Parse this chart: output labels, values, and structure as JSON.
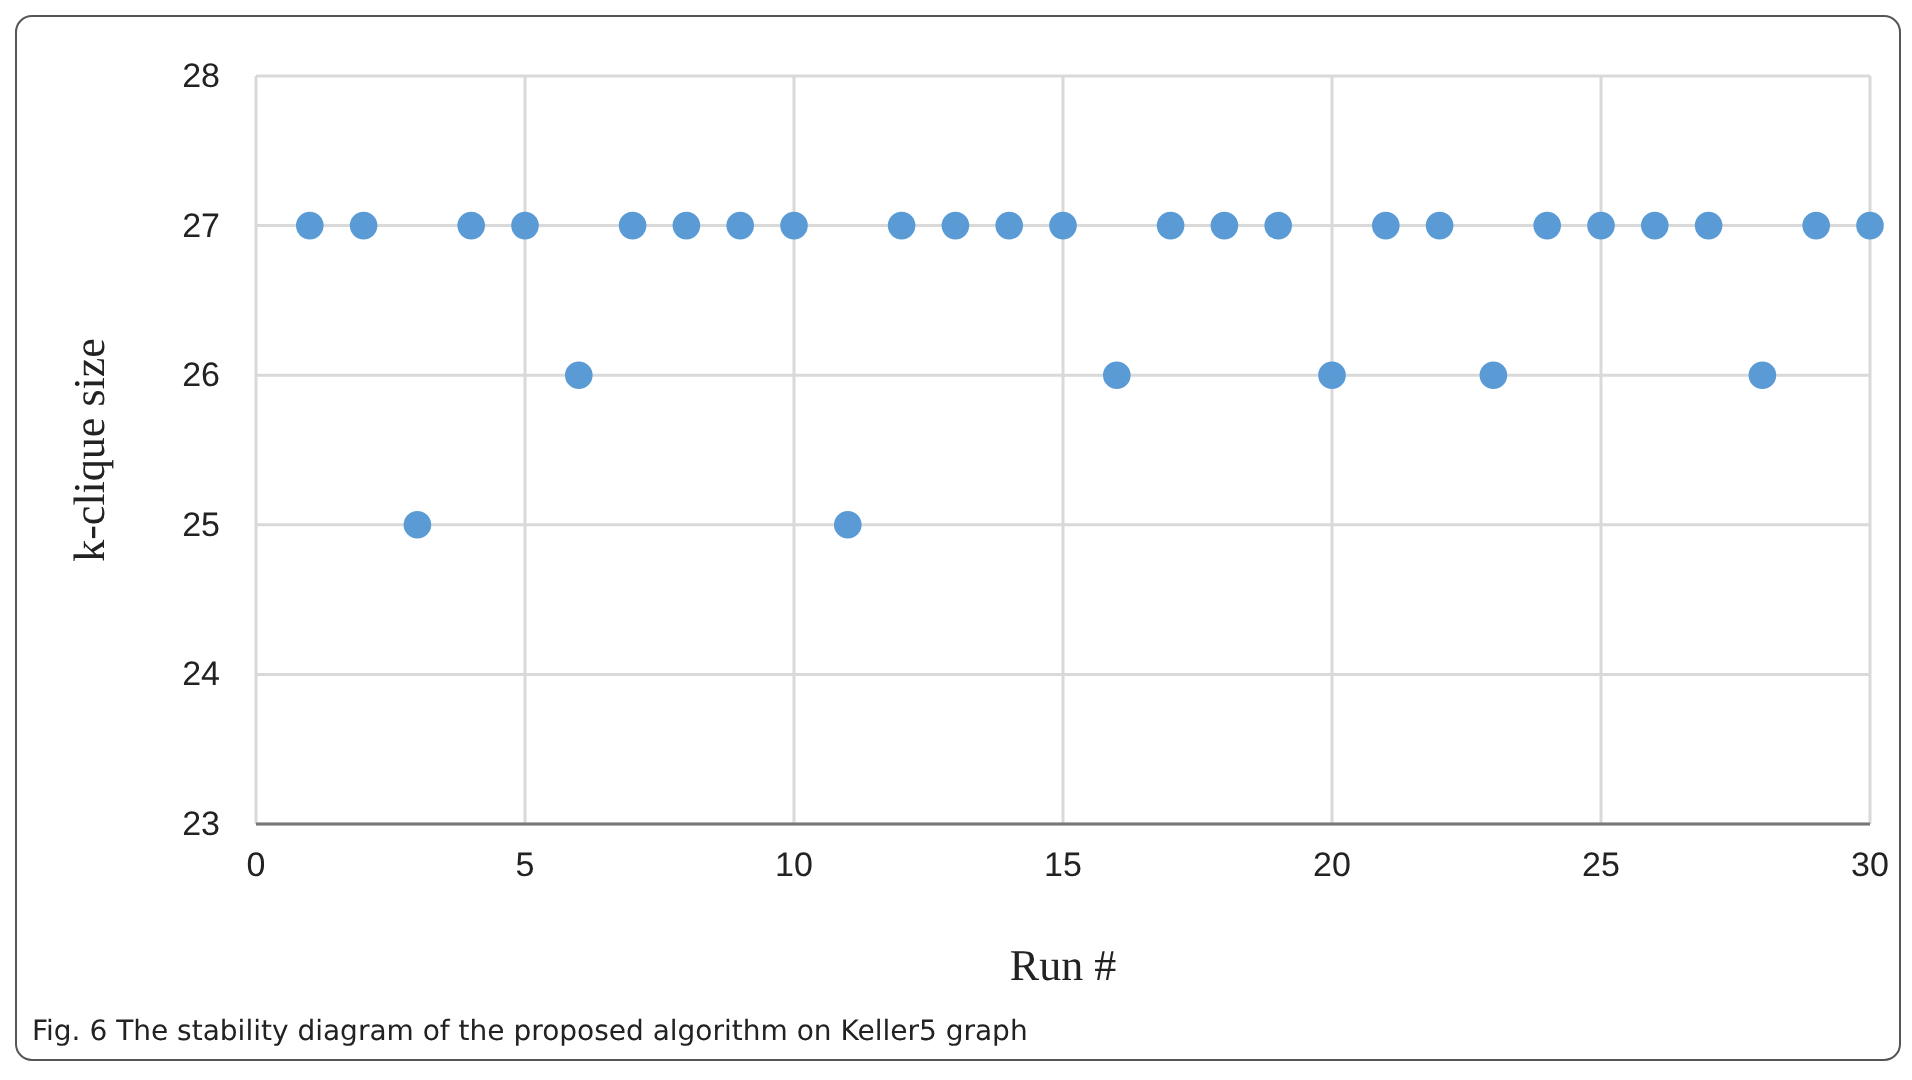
{
  "chart_data": {
    "type": "scatter",
    "xlabel": "Run #",
    "ylabel": "k-clique size",
    "x": [
      1,
      2,
      3,
      4,
      5,
      6,
      7,
      8,
      9,
      10,
      11,
      12,
      13,
      14,
      15,
      16,
      17,
      18,
      19,
      20,
      21,
      22,
      23,
      24,
      25,
      26,
      27,
      28,
      29,
      30
    ],
    "series": [
      {
        "color": "#5b9bd5",
        "values": [
          27,
          27,
          25,
          27,
          27,
          26,
          27,
          27,
          27,
          27,
          25,
          27,
          27,
          27,
          27,
          26,
          27,
          27,
          27,
          26,
          27,
          27,
          26,
          27,
          27,
          27,
          27,
          26,
          27,
          27
        ]
      }
    ],
    "xlim": [
      0,
      30
    ],
    "xticks": [
      0,
      5,
      10,
      15,
      20,
      25,
      30
    ],
    "ylim": [
      23,
      28
    ],
    "yticks": [
      23,
      24,
      25,
      26,
      27,
      28
    ],
    "grid": true,
    "marker": "circle",
    "annotations": [
      "Fig. 6  The stability diagram of the proposed algorithm on Keller5 graph"
    ]
  }
}
